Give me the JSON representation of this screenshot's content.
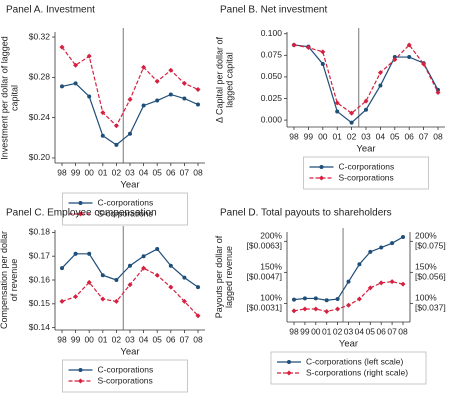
{
  "chart_data": [
    {
      "type": "line",
      "title": "Panel A. Investment",
      "y_label": "Investment per dollar of lagged capital",
      "x_label": "Year",
      "categories": [
        "98",
        "99",
        "00",
        "01",
        "02",
        "03",
        "04",
        "05",
        "06",
        "07",
        "08"
      ],
      "series": [
        {
          "name": "C-corporations",
          "color": "#1f4e79",
          "values": [
            0.271,
            0.274,
            0.261,
            0.222,
            0.213,
            0.224,
            0.252,
            0.257,
            0.263,
            0.259,
            0.253
          ]
        },
        {
          "name": "S-corporations",
          "color": "#d62040",
          "values": [
            0.31,
            0.292,
            0.301,
            0.245,
            0.232,
            0.258,
            0.29,
            0.276,
            0.287,
            0.274,
            0.268
          ]
        }
      ],
      "ylim": [
        0.195,
        0.325
      ],
      "yticks": [
        {
          "value": 0.2,
          "label": "$0.20"
        },
        {
          "value": 0.24,
          "label": "$0.24"
        },
        {
          "value": 0.28,
          "label": "$0.28"
        },
        {
          "value": 0.32,
          "label": "$0.32"
        }
      ]
    },
    {
      "type": "line",
      "title": "Panel B. Net investment",
      "y_label": "Δ Capital per dollar of lagged capital",
      "x_label": "Year",
      "categories": [
        "98",
        "99",
        "00",
        "01",
        "02",
        "03",
        "04",
        "05",
        "06",
        "07",
        "08"
      ],
      "series": [
        {
          "name": "C-corporations",
          "color": "#1f4e79",
          "values": [
            0.087,
            0.085,
            0.065,
            0.01,
            -0.003,
            0.012,
            0.04,
            0.073,
            0.073,
            0.066,
            0.035
          ]
        },
        {
          "name": "S-corporations",
          "color": "#d62040",
          "values": [
            0.087,
            0.084,
            0.079,
            0.02,
            0.008,
            0.022,
            0.055,
            0.07,
            0.087,
            0.065,
            0.032
          ]
        }
      ],
      "ylim": [
        -0.008,
        0.102
      ],
      "yticks": [
        {
          "value": 0,
          "label": "0.000"
        },
        {
          "value": 0.025,
          "label": "0.025"
        },
        {
          "value": 0.05,
          "label": "0.050"
        },
        {
          "value": 0.075,
          "label": "0.075"
        },
        {
          "value": 0.1,
          "label": "0.100"
        }
      ]
    },
    {
      "type": "line",
      "title": "Panel C. Employee compensation",
      "y_label": "Compensation per dollar of revenue",
      "x_label": "Year",
      "categories": [
        "98",
        "99",
        "00",
        "01",
        "02",
        "03",
        "04",
        "05",
        "06",
        "07",
        "08"
      ],
      "series": [
        {
          "name": "C-corporations",
          "color": "#1f4e79",
          "values": [
            0.165,
            0.171,
            0.171,
            0.162,
            0.16,
            0.166,
            0.17,
            0.173,
            0.166,
            0.161,
            0.157
          ]
        },
        {
          "name": "S-corporations",
          "color": "#d62040",
          "values": [
            0.151,
            0.153,
            0.159,
            0.152,
            0.151,
            0.158,
            0.165,
            0.162,
            0.157,
            0.151,
            0.145
          ]
        }
      ],
      "ylim": [
        0.139,
        0.181
      ],
      "yticks": [
        {
          "value": 0.14,
          "label": "$0.14"
        },
        {
          "value": 0.15,
          "label": "$0.15"
        },
        {
          "value": 0.16,
          "label": "$0.16"
        },
        {
          "value": 0.17,
          "label": "$0.17"
        },
        {
          "value": 0.18,
          "label": "$0.18"
        }
      ]
    },
    {
      "type": "line",
      "title": "Panel D. Total payouts to shareholders",
      "y_label": "Payouts per dollar of lagged revenue",
      "x_label": "Year",
      "categories": [
        "98",
        "99",
        "00",
        "01",
        "02",
        "03",
        "04",
        "05",
        "06",
        "07",
        "08"
      ],
      "series": [
        {
          "name": "C-corporations (left scale)",
          "color": "#1f4e79",
          "values": [
            106,
            108,
            108,
            105,
            107,
            135,
            163,
            183,
            190,
            197,
            207
          ]
        },
        {
          "name": "S-corporations (right scale)",
          "color": "#d62040",
          "axis": "y2",
          "values": [
            88,
            91,
            91,
            87,
            91,
            97,
            107,
            125,
            133,
            135,
            131
          ]
        }
      ],
      "ylim": [
        70,
        215
      ],
      "yticks": [
        {
          "value": 100,
          "label": [
            "100%",
            "[$0.0031]"
          ]
        },
        {
          "value": 150,
          "label": [
            "150%",
            "[$0.0047]"
          ]
        },
        {
          "value": 200,
          "label": [
            "200%",
            "[$0.0063]"
          ]
        }
      ],
      "y2lim": [
        70,
        215
      ],
      "y2ticks": [
        {
          "value": 100,
          "label": [
            "100%",
            "[$0.037]"
          ]
        },
        {
          "value": 150,
          "label": [
            "150%",
            "[$0.056]"
          ]
        },
        {
          "value": 200,
          "label": [
            "200%",
            "[$0.075]"
          ]
        }
      ]
    }
  ]
}
